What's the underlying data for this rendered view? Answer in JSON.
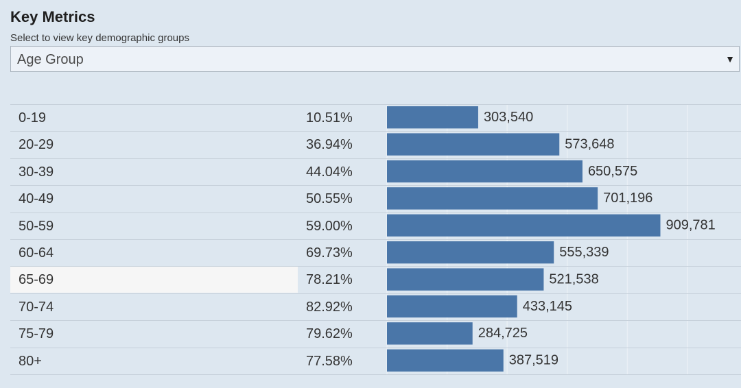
{
  "header": {
    "title": "Key Metrics",
    "subtitle": "Select to view key demographic groups"
  },
  "filter": {
    "selected": "Age Group",
    "arrow_icon": "triangle-down-icon"
  },
  "colors": {
    "bar": "#4a76a8",
    "background": "#dde7f0",
    "highlight_row": "#f6f6f6"
  },
  "chart_data": {
    "type": "bar",
    "orientation": "horizontal",
    "categories": [
      "0-19",
      "20-29",
      "30-39",
      "40-49",
      "50-59",
      "60-64",
      "65-69",
      "70-74",
      "75-79",
      "80+"
    ],
    "percentages": [
      "10.51%",
      "36.94%",
      "44.04%",
      "50.55%",
      "59.00%",
      "69.73%",
      "78.21%",
      "82.92%",
      "79.62%",
      "77.58%"
    ],
    "values": [
      303540,
      573648,
      650575,
      701196,
      909781,
      555339,
      521538,
      433145,
      284725,
      387519
    ],
    "value_labels": [
      "303,540",
      "573,648",
      "650,575",
      "701,196",
      "909,781",
      "555,339",
      "521,538",
      "433,145",
      "284,725",
      "387,519"
    ],
    "highlighted_category": "65-69",
    "xlim": [
      0,
      1000000
    ],
    "grid": true,
    "legend": "none"
  }
}
